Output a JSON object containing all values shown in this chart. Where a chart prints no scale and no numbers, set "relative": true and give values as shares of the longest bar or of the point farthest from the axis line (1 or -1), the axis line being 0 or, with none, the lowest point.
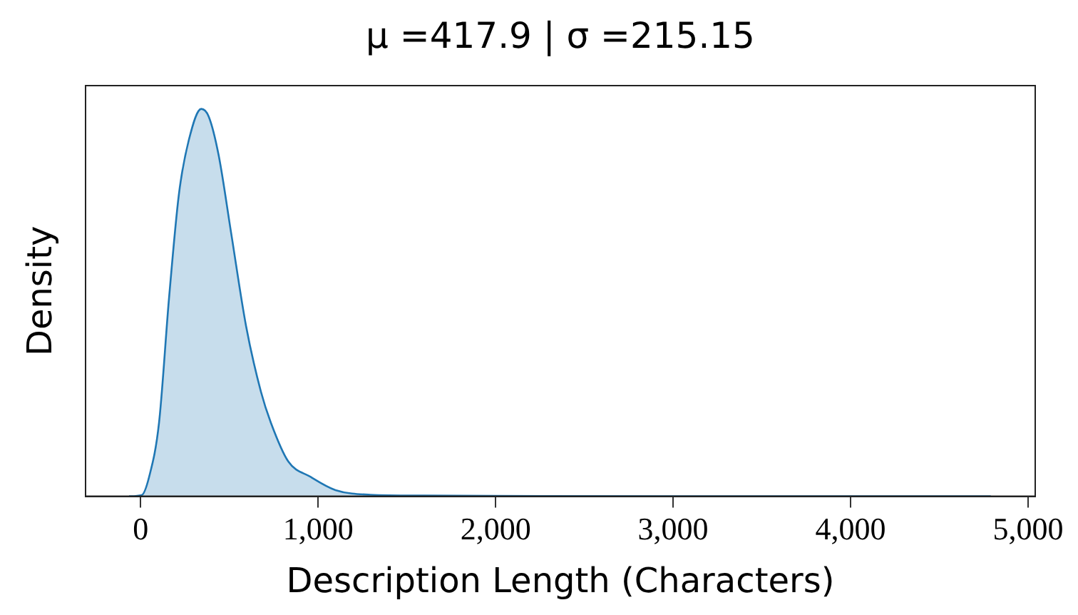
{
  "chart_data": {
    "type": "area",
    "title": "μ =417.9 | σ =215.15",
    "xlabel": "Description Length (Characters)",
    "ylabel": "Density",
    "relative": true,
    "marker": "none",
    "color": "#1f77b4",
    "x": [
      -65,
      6,
      48,
      104,
      160,
      216,
      272,
      342,
      384,
      440,
      510,
      594,
      678,
      734,
      832,
      958,
      1098,
      1294,
      1600,
      2000,
      3000,
      4000,
      4790
    ],
    "values": [
      0,
      0.003,
      0.05,
      0.19,
      0.51,
      0.78,
      0.92,
      1.0,
      0.98,
      0.88,
      0.68,
      0.44,
      0.27,
      0.19,
      0.09,
      0.05,
      0.016,
      0.004,
      0.002,
      0.001,
      0,
      0,
      0
    ],
    "xlim": [
      -310,
      5040
    ],
    "xticks": [
      0,
      {
        "value": 1000,
        "label": "1,000"
      },
      {
        "value": 2000,
        "label": "2,000"
      },
      {
        "value": 3000,
        "label": "3,000"
      },
      {
        "value": 4000,
        "label": "4,000"
      },
      {
        "value": 5000,
        "label": "5,000"
      }
    ]
  }
}
